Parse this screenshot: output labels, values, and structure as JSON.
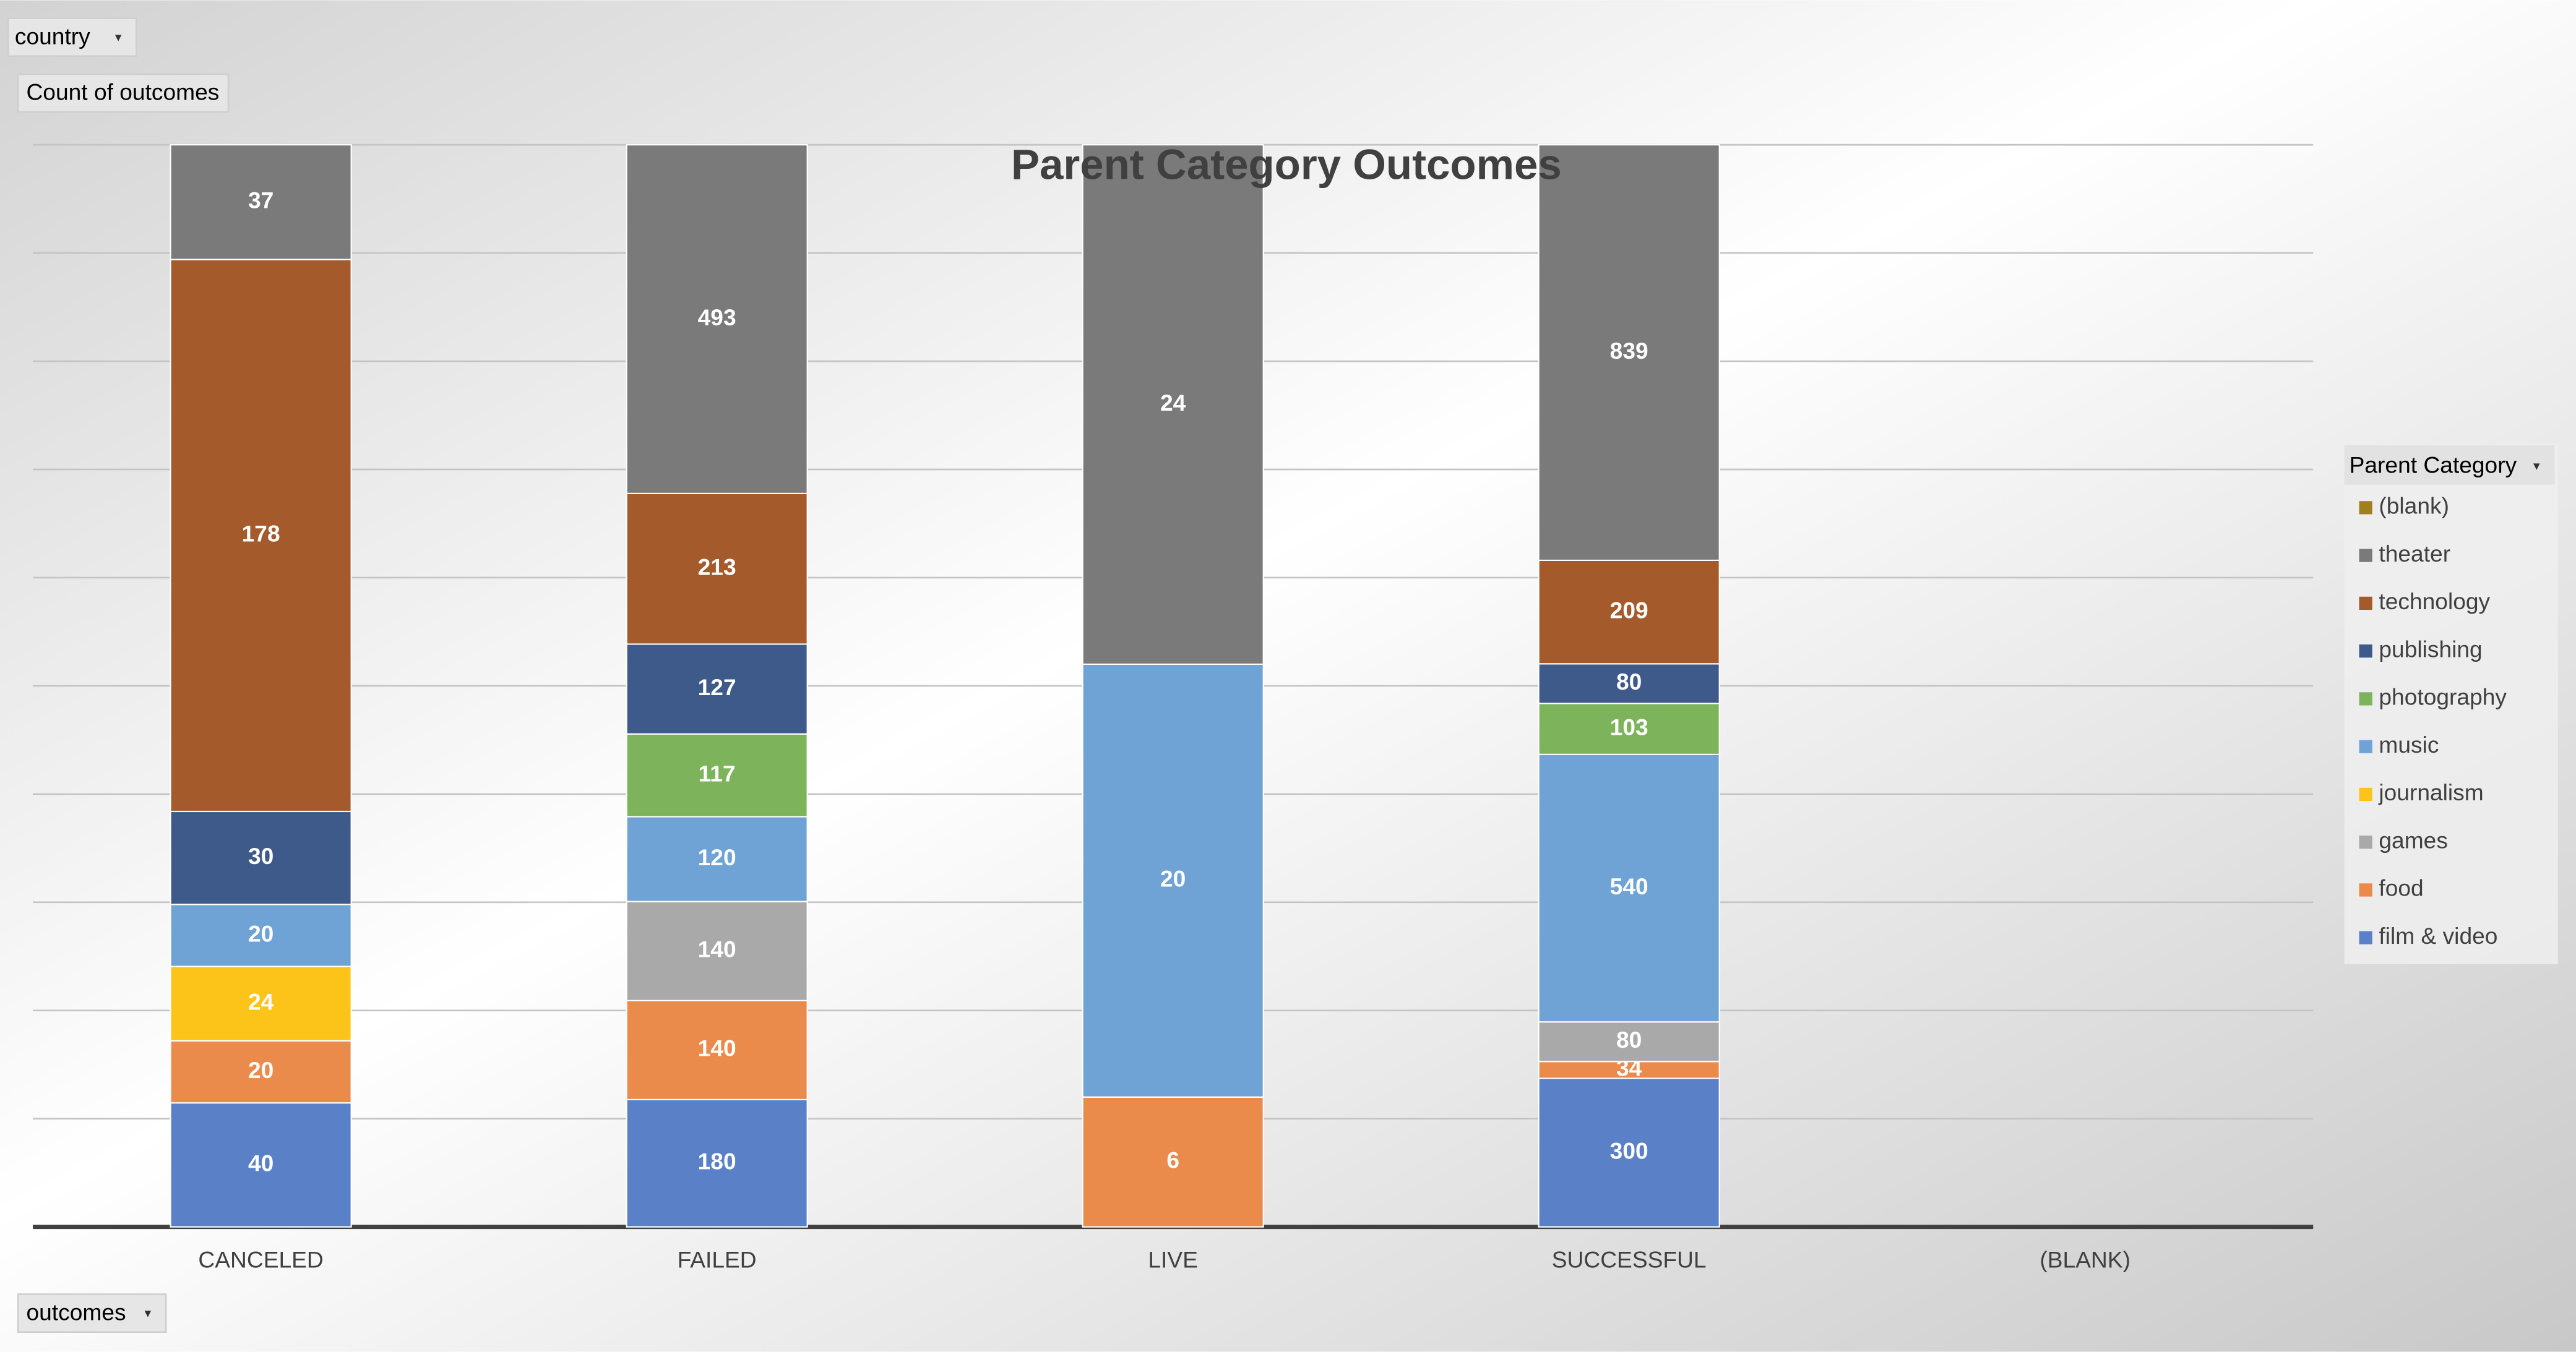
{
  "chart_data": {
    "type": "stacked_percent_bar",
    "title": "Parent Category Outcomes",
    "filter_button": "country",
    "value_button": "Count of outcomes",
    "axis_button": "outcomes",
    "legend_title": "Parent Category",
    "legend_position": "right",
    "categories": [
      "CANCELED",
      "FAILED",
      "LIVE",
      "SUCCESSFUL",
      "(BLANK)"
    ],
    "ylim": [
      0,
      100
    ],
    "yticks": [
      0,
      10,
      20,
      30,
      40,
      50,
      60,
      70,
      80,
      90,
      100
    ],
    "grid": true,
    "show_y_tick_labels": false,
    "series": [
      {
        "name": "film & video",
        "color": "#5a80c8",
        "values": [
          40,
          180,
          null,
          300,
          null
        ]
      },
      {
        "name": "food",
        "color": "#ea8a4b",
        "values": [
          20,
          140,
          6,
          34,
          null
        ]
      },
      {
        "name": "games",
        "color": "#a9a9a9",
        "values": [
          null,
          140,
          null,
          80,
          null
        ]
      },
      {
        "name": "journalism",
        "color": "#fcc419",
        "values": [
          24,
          null,
          null,
          null,
          null
        ]
      },
      {
        "name": "music",
        "color": "#6fa3d6",
        "values": [
          20,
          120,
          20,
          540,
          null
        ]
      },
      {
        "name": "photography",
        "color": "#7db35a",
        "values": [
          null,
          117,
          null,
          103,
          null
        ]
      },
      {
        "name": "publishing",
        "color": "#3e5a8a",
        "values": [
          30,
          127,
          null,
          80,
          null
        ]
      },
      {
        "name": "technology",
        "color": "#a45a2a",
        "values": [
          178,
          213,
          null,
          209,
          null
        ]
      },
      {
        "name": "theater",
        "color": "#7a7a7a",
        "values": [
          37,
          493,
          24,
          839,
          null
        ]
      },
      {
        "name": "(blank)",
        "color": "#a07f1e",
        "values": [
          null,
          null,
          null,
          null,
          null
        ]
      }
    ]
  }
}
